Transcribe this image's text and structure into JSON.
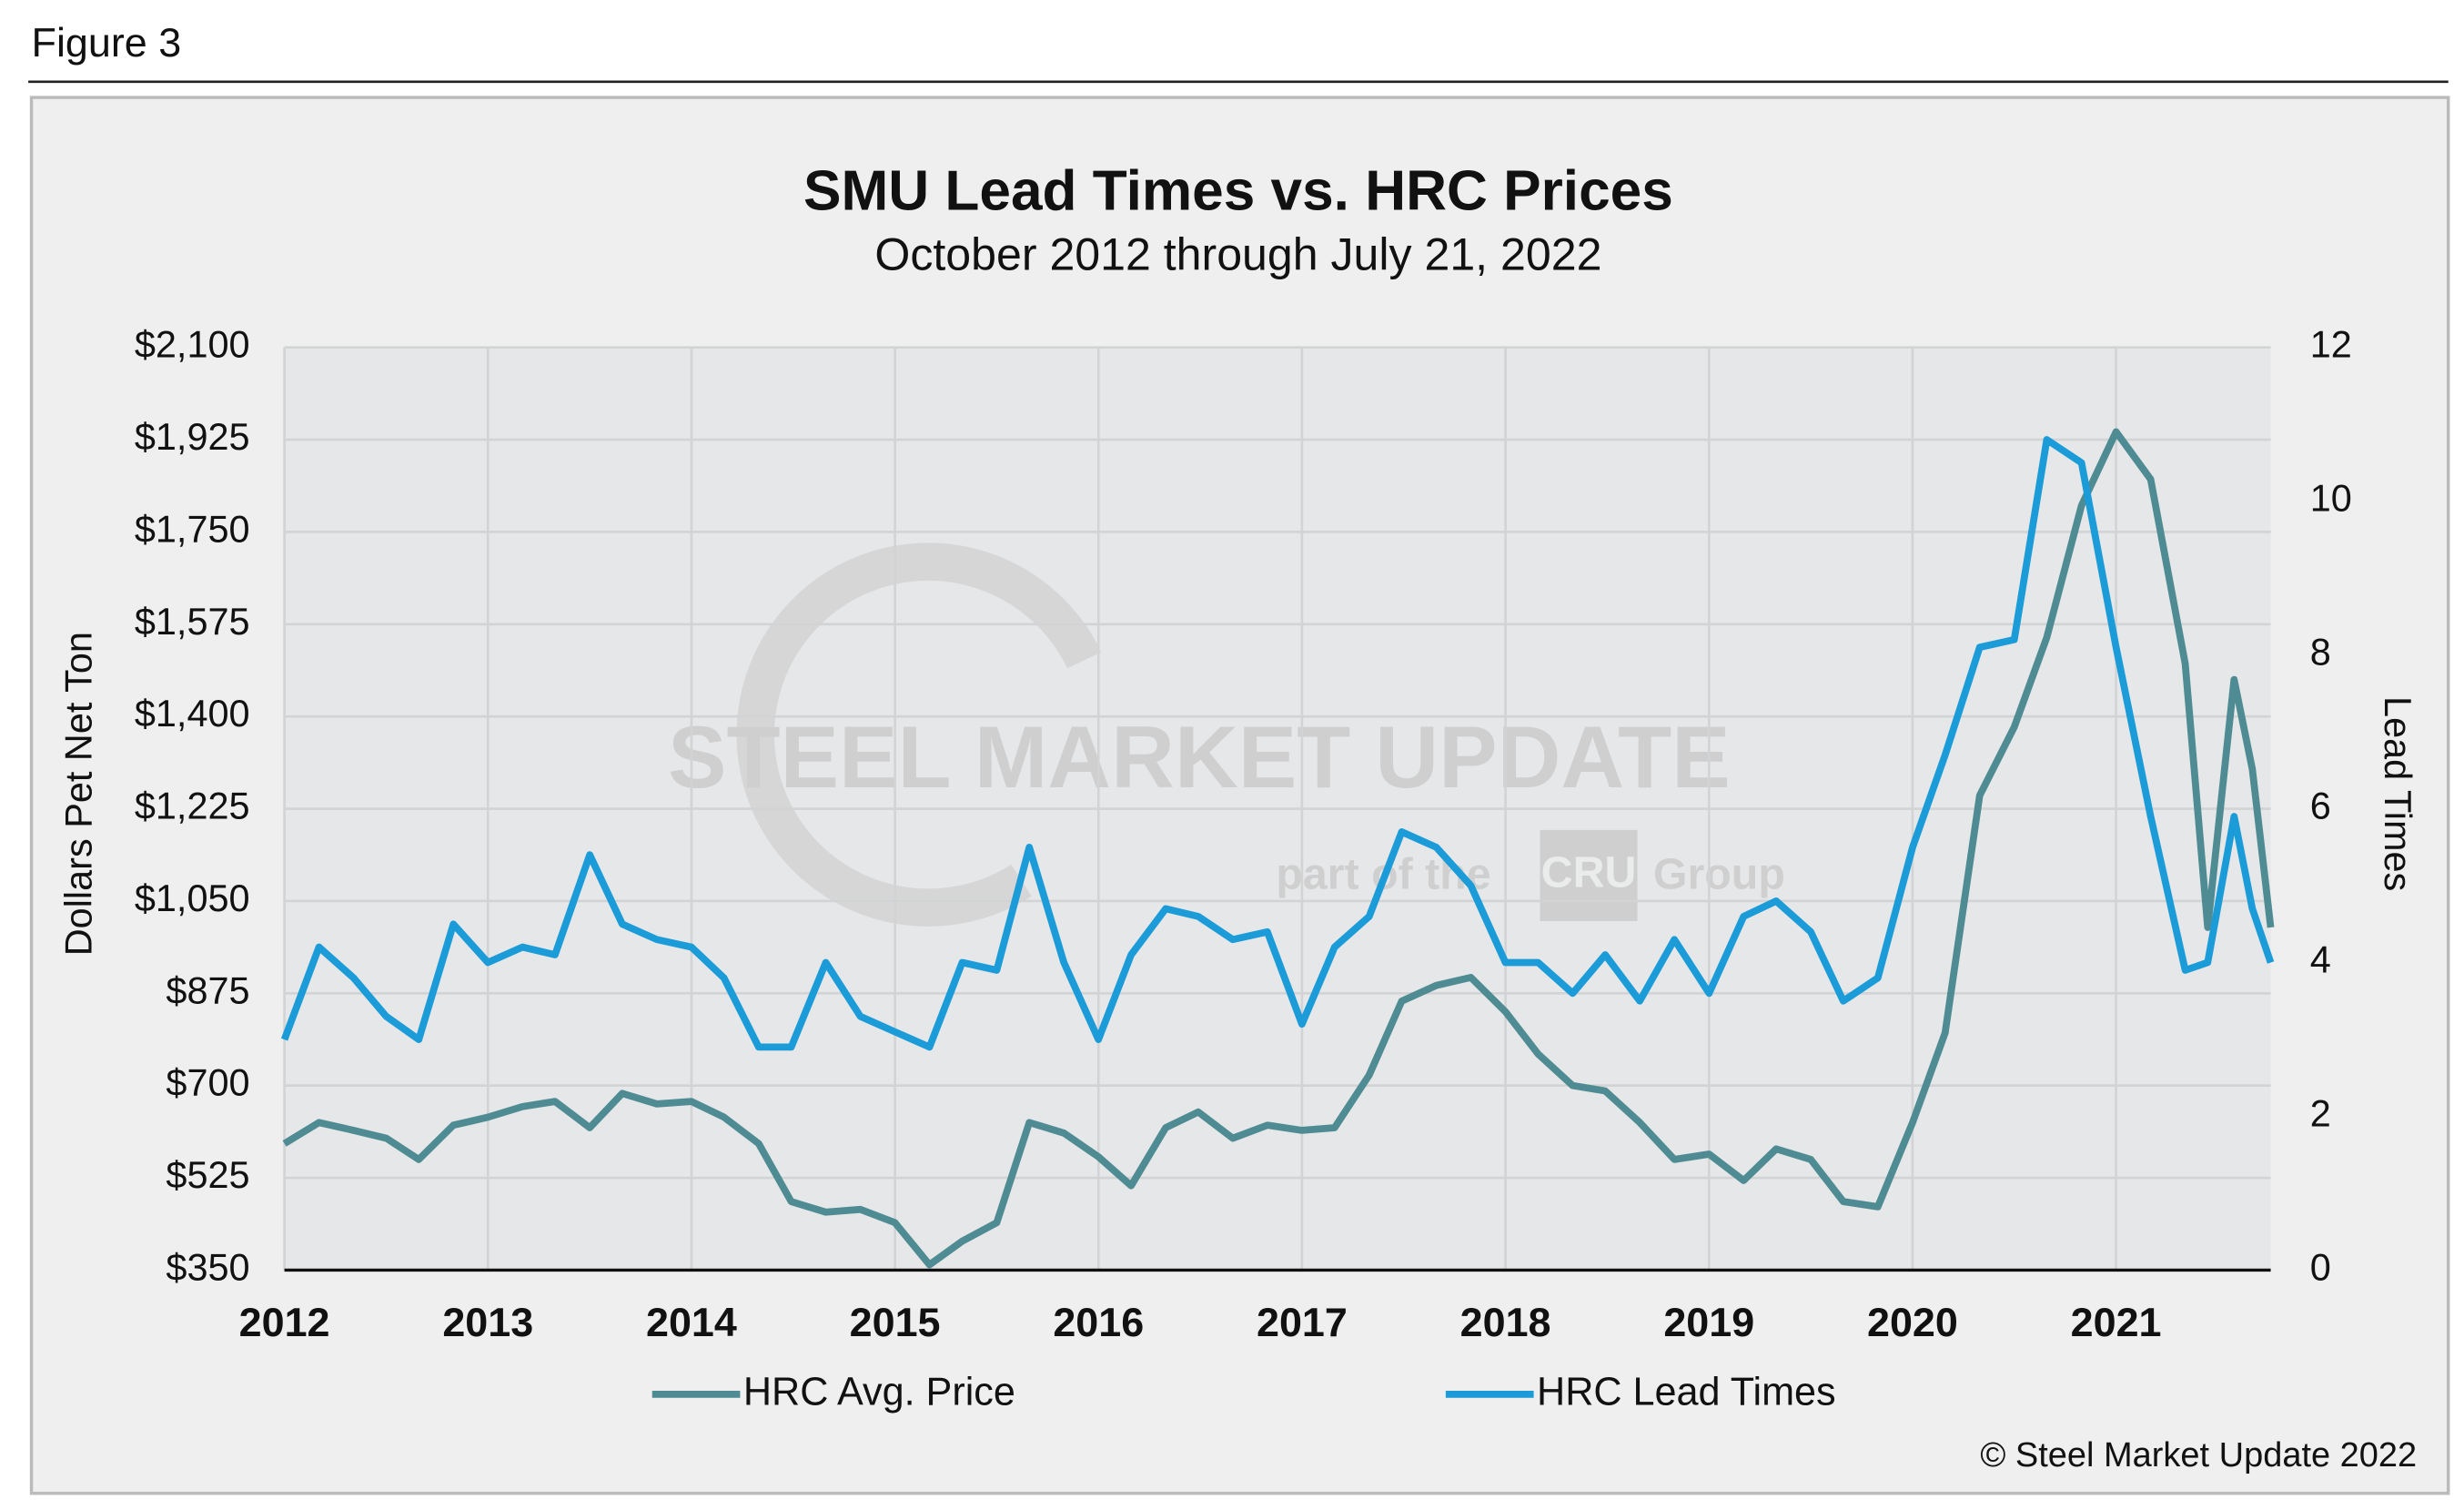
{
  "figure_label": "Figure 3",
  "copyright": "© Steel Market Update 2022",
  "watermark": {
    "name": "STEEL MARKET UPDATE",
    "tagline": "part of the",
    "brand": "CRU",
    "group": "Group"
  },
  "chart_data": {
    "type": "line",
    "title": "SMU Lead Times vs. HRC Prices",
    "subtitle": "October 2012 through July 21, 2022",
    "y_label": "Dollars Pet Net Ton",
    "y2_label": "Lead Times",
    "grid": true,
    "legend": "bottom",
    "x": [
      2012.0,
      2012.17,
      2012.34,
      2012.5,
      2012.66,
      2012.83,
      2013.0,
      2013.17,
      2013.33,
      2013.5,
      2013.66,
      2013.83,
      2014.0,
      2014.16,
      2014.33,
      2014.49,
      2014.66,
      2014.83,
      2015.0,
      2015.17,
      2015.33,
      2015.5,
      2015.66,
      2015.83,
      2016.0,
      2016.16,
      2016.33,
      2016.49,
      2016.66,
      2016.83,
      2017.0,
      2017.16,
      2017.33,
      2017.49,
      2017.66,
      2017.83,
      2018.0,
      2018.16,
      2018.33,
      2018.49,
      2018.66,
      2018.83,
      2019.0,
      2019.17,
      2019.33,
      2019.5,
      2019.66,
      2019.83,
      2020.0,
      2020.16,
      2020.33,
      2020.5,
      2020.66,
      2020.83,
      2021.0,
      2021.17,
      2021.34,
      2021.45,
      2021.58,
      2021.67,
      2021.76
    ],
    "xlim": [
      2012,
      2021.76
    ],
    "xticks": [
      2012,
      2013,
      2014,
      2015,
      2016,
      2017,
      2018,
      2019,
      2020,
      2021
    ],
    "ylim": [
      350,
      2100
    ],
    "yticks": [
      {
        "value": 350,
        "label": "$350"
      },
      {
        "value": 525,
        "label": "$525"
      },
      {
        "value": 700,
        "label": "$700"
      },
      {
        "value": 875,
        "label": "$875"
      },
      {
        "value": 1050,
        "label": "$1,050"
      },
      {
        "value": 1225,
        "label": "$1,225"
      },
      {
        "value": 1400,
        "label": "$1,400"
      },
      {
        "value": 1575,
        "label": "$1,575"
      },
      {
        "value": 1750,
        "label": "$1,750"
      },
      {
        "value": 1925,
        "label": "$1,925"
      },
      {
        "value": 2100,
        "label": "$2,100"
      }
    ],
    "y2lim": [
      0,
      12
    ],
    "y2ticks": [
      0,
      2,
      4,
      6,
      8,
      10,
      12
    ],
    "series": [
      {
        "name": "HRC Avg. Price",
        "color": "#4f8b93",
        "values": [
          590,
          630,
          615,
          600,
          560,
          625,
          640,
          660,
          670,
          620,
          685,
          665,
          670,
          640,
          590,
          480,
          460,
          465,
          440,
          360,
          405,
          440,
          630,
          610,
          565,
          510,
          620,
          650,
          600,
          625,
          615,
          620,
          720,
          860,
          890,
          905,
          840,
          760,
          700,
          690,
          630,
          560,
          570,
          520,
          580,
          560,
          480,
          470,
          630,
          800,
          1250,
          1380,
          1550,
          1800,
          1940,
          1850,
          1500,
          1000,
          1470,
          1300,
          1000
        ]
      },
      {
        "name": "HRC Lead Times",
        "color": "#1b9bd7",
        "axis": "y2",
        "values": [
          3.0,
          4.2,
          3.8,
          3.3,
          3.0,
          4.5,
          4.0,
          4.2,
          4.1,
          5.4,
          4.5,
          4.3,
          4.2,
          3.8,
          2.9,
          2.9,
          4.0,
          3.3,
          3.1,
          2.9,
          4.0,
          3.9,
          5.5,
          4.0,
          3.0,
          4.1,
          4.7,
          4.6,
          4.3,
          4.4,
          3.2,
          4.2,
          4.6,
          5.7,
          5.5,
          5.0,
          4.0,
          4.0,
          3.6,
          4.1,
          3.5,
          4.3,
          3.6,
          4.6,
          4.8,
          4.4,
          3.5,
          3.8,
          5.5,
          6.7,
          8.1,
          8.2,
          10.8,
          10.5,
          8.1,
          5.9,
          3.9,
          4.0,
          5.9,
          4.7,
          4.0
        ]
      }
    ]
  }
}
